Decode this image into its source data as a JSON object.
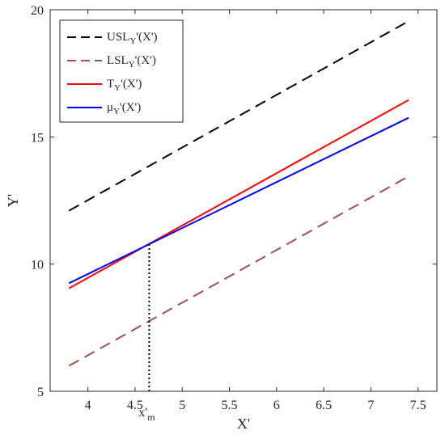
{
  "chart_data": {
    "type": "line",
    "title": "",
    "xlabel": "X'",
    "ylabel": "Y'",
    "xlim": [
      3.6,
      7.7
    ],
    "ylim": [
      5,
      20
    ],
    "xticks": [
      4,
      4.5,
      5,
      5.5,
      6,
      6.5,
      7,
      7.5
    ],
    "xtick_labels": [
      "4",
      "4.5",
      "5",
      "5.5",
      "6",
      "6.5",
      "7",
      "7.5"
    ],
    "yticks": [
      5,
      10,
      15,
      20
    ],
    "ytick_labels": [
      "5",
      "10",
      "15",
      "20"
    ],
    "grid": false,
    "legend_position": "top-left",
    "series": [
      {
        "name_main": "USL",
        "name_sub": "Y",
        "name_tail": "'(X')",
        "color": "#000000",
        "dash": "dashed",
        "x": [
          3.8,
          7.4
        ],
        "y": [
          12.1,
          19.55
        ]
      },
      {
        "name_main": "LSL",
        "name_sub": "Y",
        "name_tail": "'(X')",
        "color": "#a05050",
        "dash": "dashed",
        "x": [
          3.8,
          7.4
        ],
        "y": [
          6.0,
          13.45
        ]
      },
      {
        "name_main": "T",
        "name_sub": "Y",
        "name_tail": "'(X')",
        "color": "#ff0000",
        "dash": "solid",
        "x": [
          3.8,
          7.4
        ],
        "y": [
          9.05,
          16.45
        ]
      },
      {
        "name_main": "μ",
        "name_sub": "Y",
        "name_tail": "'(X')",
        "color": "#0000ff",
        "dash": "solid",
        "x": [
          3.8,
          7.4
        ],
        "y": [
          9.25,
          15.75
        ]
      }
    ],
    "annotations": [
      {
        "type": "vline",
        "style": "dotted",
        "color": "#000000",
        "x": 4.65,
        "y_from": 5.0,
        "y_to": 10.8
      },
      {
        "type": "text",
        "main": "x'",
        "sub": "m",
        "x": 4.65
      }
    ]
  }
}
